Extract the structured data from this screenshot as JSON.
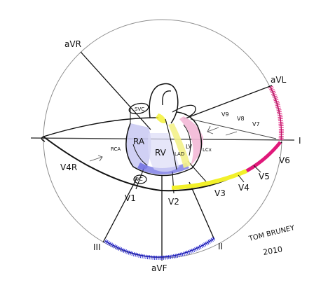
{
  "leads": {
    "aVR": "aVR",
    "aVL": "aVL",
    "I": "I",
    "II": "II",
    "III": "III",
    "aVF": "aVF"
  },
  "precordial": {
    "V1": "V1",
    "V2": "V2",
    "V3": "V3",
    "V4": "V4",
    "V5": "V5",
    "V6": "V6",
    "V4R": "V4R",
    "V7": "V7",
    "V8": "V8",
    "V9": "V9"
  },
  "anatomy": {
    "svc": "SVC",
    "ivc": "IVC",
    "ra": "RA",
    "rv": "RV",
    "lv": "LV",
    "lad": "LAD",
    "lcx": "LCx",
    "rca": "RCA"
  },
  "signature": {
    "name": "TOM BRUNEY",
    "year": "2010"
  },
  "colors": {
    "inferior_blue": "#2b2bd6",
    "lateral_magenta": "#e0187a",
    "anterior_yellow": "#f2f02a",
    "rv_lavender": "#b9b9ef",
    "lv_pink": "#f3b8d6",
    "outline": "#111111",
    "guide": "#9a9a9a"
  }
}
